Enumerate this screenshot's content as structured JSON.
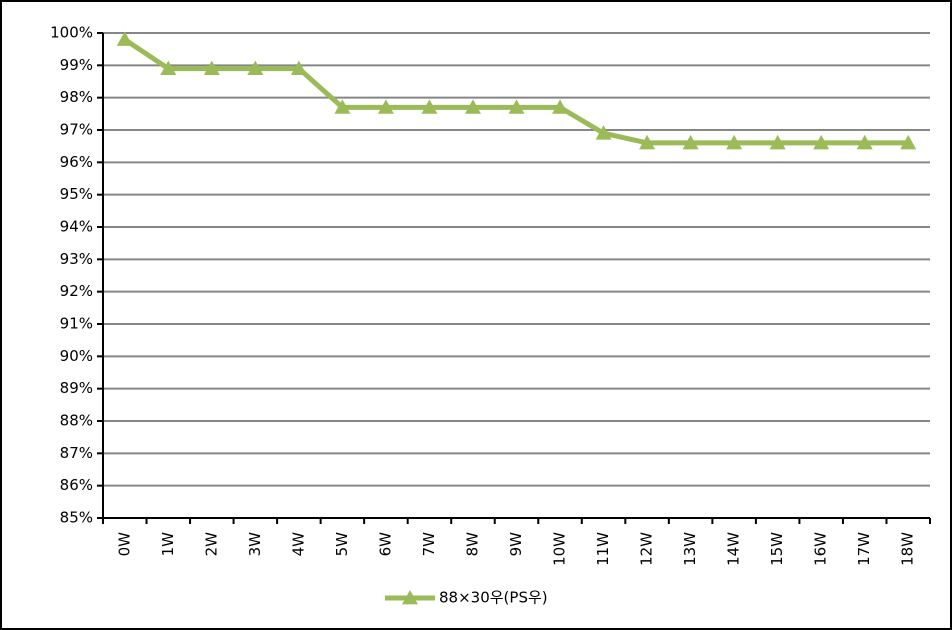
{
  "chart_data": {
    "type": "line",
    "categories": [
      "0W",
      "1W",
      "2W",
      "3W",
      "4W",
      "5W",
      "6W",
      "7W",
      "8W",
      "9W",
      "10W",
      "11W",
      "12W",
      "13W",
      "14W",
      "15W",
      "16W",
      "17W",
      "18W"
    ],
    "series": [
      {
        "name": "88×30우(PS우)",
        "color": "#9bbb59",
        "values": [
          99.8,
          98.9,
          98.9,
          98.9,
          98.9,
          97.7,
          97.7,
          97.7,
          97.7,
          97.7,
          97.7,
          96.9,
          96.6,
          96.6,
          96.6,
          96.6,
          96.6,
          96.6,
          96.6
        ]
      }
    ],
    "ylim": [
      85,
      100
    ],
    "yticks": [
      {
        "value": 85,
        "label": "85%"
      },
      {
        "value": 86,
        "label": "86%"
      },
      {
        "value": 87,
        "label": "87%"
      },
      {
        "value": 88,
        "label": "88%"
      },
      {
        "value": 89,
        "label": "89%"
      },
      {
        "value": 90,
        "label": "90%"
      },
      {
        "value": 91,
        "label": "91%"
      },
      {
        "value": 92,
        "label": "92%"
      },
      {
        "value": 93,
        "label": "93%"
      },
      {
        "value": 94,
        "label": "94%"
      },
      {
        "value": 95,
        "label": "95%"
      },
      {
        "value": 96,
        "label": "96%"
      },
      {
        "value": 97,
        "label": "97%"
      },
      {
        "value": 98,
        "label": "98%"
      },
      {
        "value": 99,
        "label": "99%"
      },
      {
        "value": 100,
        "label": "100%"
      }
    ],
    "grid": true,
    "legend": "bottom"
  }
}
